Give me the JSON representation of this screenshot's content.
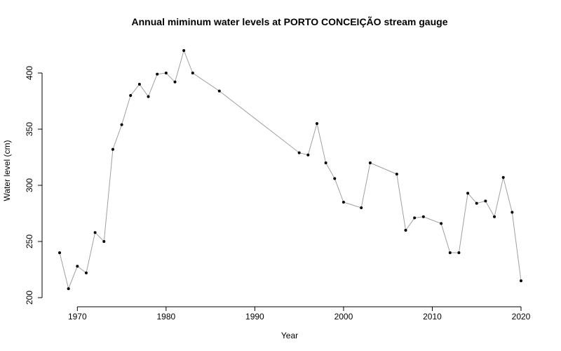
{
  "chart_data": {
    "type": "line",
    "title": "Annual miminum water levels at PORTO CONCEIÇÃO stream gauge",
    "xlabel": "Year",
    "ylabel": "Water level (cm)",
    "xlim": [
      1967,
      2021
    ],
    "ylim": [
      200,
      425
    ],
    "xticks": [
      1970,
      1980,
      1990,
      2000,
      2010,
      2020
    ],
    "yticks": [
      200,
      250,
      300,
      350,
      400
    ],
    "grid": false,
    "line_color": "#a0a0a0",
    "point_color": "#000000",
    "x": [
      1968,
      1969,
      1970,
      1971,
      1972,
      1973,
      1974,
      1975,
      1976,
      1977,
      1978,
      1979,
      1980,
      1981,
      1982,
      1983,
      1986,
      1995,
      1996,
      1997,
      1998,
      1999,
      2000,
      2002,
      2003,
      2006,
      2007,
      2008,
      2009,
      2011,
      2012,
      2013,
      2014,
      2015,
      2016,
      2017,
      2018,
      2019,
      2020
    ],
    "y": [
      240,
      208,
      228,
      222,
      258,
      250,
      332,
      354,
      380,
      390,
      379,
      399,
      400,
      392,
      420,
      400,
      384,
      329,
      327,
      355,
      320,
      306,
      285,
      280,
      320,
      310,
      260,
      271,
      272,
      266,
      240,
      240,
      293,
      284,
      286,
      272,
      307,
      276,
      215
    ]
  }
}
